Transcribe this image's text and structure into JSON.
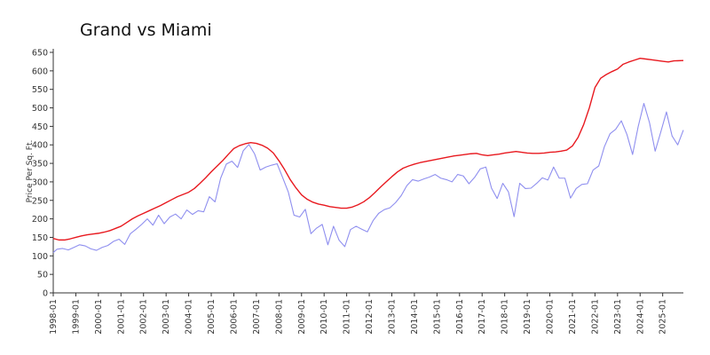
{
  "chart_data": {
    "type": "line",
    "title": "Grand vs Miami",
    "xlabel": "",
    "ylabel": "Price Per Sq. Ft.",
    "ylim": [
      0,
      650
    ],
    "yticks": [
      0,
      50,
      100,
      150,
      200,
      250,
      300,
      350,
      400,
      450,
      500,
      550,
      600,
      650
    ],
    "x_range": [
      "1998-01",
      "2025-12"
    ],
    "x_tick_labels": [
      "1998-01",
      "1999-01",
      "2000-01",
      "2001-01",
      "2002-01",
      "2003-01",
      "2004-01",
      "2005-01",
      "2006-01",
      "2007-01",
      "2008-01",
      "2009-01",
      "2010-01",
      "2011-01",
      "2012-01",
      "2013-01",
      "2014-01",
      "2015-01",
      "2016-01",
      "2017-01",
      "2018-01",
      "2019-01",
      "2020-01",
      "2021-01",
      "2022-01",
      "2023-01",
      "2024-01",
      "2025-01"
    ],
    "grid": false,
    "legend": "none",
    "series": [
      {
        "color": "#e8191f",
        "points": [
          [
            "1998-01",
            147
          ],
          [
            "1998-04",
            143
          ],
          [
            "1998-07",
            143
          ],
          [
            "1998-10",
            146
          ],
          [
            "1999-01",
            150
          ],
          [
            "1999-04",
            154
          ],
          [
            "1999-07",
            157
          ],
          [
            "1999-10",
            159
          ],
          [
            "2000-01",
            161
          ],
          [
            "2000-04",
            164
          ],
          [
            "2000-07",
            168
          ],
          [
            "2000-10",
            174
          ],
          [
            "2001-01",
            180
          ],
          [
            "2001-04",
            190
          ],
          [
            "2001-07",
            200
          ],
          [
            "2001-10",
            208
          ],
          [
            "2002-01",
            215
          ],
          [
            "2002-04",
            222
          ],
          [
            "2002-07",
            229
          ],
          [
            "2002-10",
            236
          ],
          [
            "2003-01",
            244
          ],
          [
            "2003-04",
            252
          ],
          [
            "2003-07",
            260
          ],
          [
            "2003-10",
            266
          ],
          [
            "2004-01",
            272
          ],
          [
            "2004-04",
            282
          ],
          [
            "2004-07",
            296
          ],
          [
            "2004-10",
            311
          ],
          [
            "2005-01",
            327
          ],
          [
            "2005-04",
            342
          ],
          [
            "2005-07",
            357
          ],
          [
            "2005-10",
            374
          ],
          [
            "2006-01",
            390
          ],
          [
            "2006-04",
            398
          ],
          [
            "2006-07",
            403
          ],
          [
            "2006-10",
            406
          ],
          [
            "2007-01",
            404
          ],
          [
            "2007-04",
            399
          ],
          [
            "2007-07",
            391
          ],
          [
            "2007-10",
            378
          ],
          [
            "2008-01",
            357
          ],
          [
            "2008-04",
            333
          ],
          [
            "2008-07",
            306
          ],
          [
            "2008-10",
            284
          ],
          [
            "2009-01",
            265
          ],
          [
            "2009-04",
            253
          ],
          [
            "2009-07",
            245
          ],
          [
            "2009-10",
            240
          ],
          [
            "2010-01",
            237
          ],
          [
            "2010-04",
            233
          ],
          [
            "2010-07",
            231
          ],
          [
            "2010-10",
            229
          ],
          [
            "2011-01",
            229
          ],
          [
            "2011-04",
            232
          ],
          [
            "2011-07",
            238
          ],
          [
            "2011-10",
            246
          ],
          [
            "2012-01",
            257
          ],
          [
            "2012-04",
            271
          ],
          [
            "2012-07",
            286
          ],
          [
            "2012-10",
            300
          ],
          [
            "2013-01",
            314
          ],
          [
            "2013-04",
            327
          ],
          [
            "2013-07",
            337
          ],
          [
            "2013-10",
            343
          ],
          [
            "2014-01",
            348
          ],
          [
            "2014-04",
            352
          ],
          [
            "2014-07",
            355
          ],
          [
            "2014-10",
            358
          ],
          [
            "2015-01",
            361
          ],
          [
            "2015-04",
            364
          ],
          [
            "2015-07",
            367
          ],
          [
            "2015-10",
            370
          ],
          [
            "2016-01",
            372
          ],
          [
            "2016-04",
            374
          ],
          [
            "2016-07",
            376
          ],
          [
            "2016-10",
            377
          ],
          [
            "2017-01",
            373
          ],
          [
            "2017-04",
            371
          ],
          [
            "2017-07",
            373
          ],
          [
            "2017-10",
            375
          ],
          [
            "2018-01",
            378
          ],
          [
            "2018-04",
            380
          ],
          [
            "2018-07",
            382
          ],
          [
            "2018-10",
            380
          ],
          [
            "2019-01",
            378
          ],
          [
            "2019-04",
            377
          ],
          [
            "2019-07",
            377
          ],
          [
            "2019-10",
            378
          ],
          [
            "2020-01",
            380
          ],
          [
            "2020-04",
            381
          ],
          [
            "2020-07",
            383
          ],
          [
            "2020-10",
            386
          ],
          [
            "2021-01",
            397
          ],
          [
            "2021-04",
            420
          ],
          [
            "2021-07",
            455
          ],
          [
            "2021-10",
            500
          ],
          [
            "2022-01",
            555
          ],
          [
            "2022-04",
            580
          ],
          [
            "2022-07",
            590
          ],
          [
            "2022-10",
            598
          ],
          [
            "2023-01",
            605
          ],
          [
            "2023-04",
            618
          ],
          [
            "2023-07",
            624
          ],
          [
            "2023-10",
            629
          ],
          [
            "2024-01",
            634
          ],
          [
            "2024-04",
            632
          ],
          [
            "2024-07",
            630
          ],
          [
            "2024-10",
            628
          ],
          [
            "2025-01",
            626
          ],
          [
            "2025-04",
            624
          ],
          [
            "2025-07",
            627
          ],
          [
            "2025-12",
            628
          ]
        ]
      },
      {
        "color": "#8f8fef",
        "points": [
          [
            "1998-01",
            109
          ],
          [
            "1998-03",
            118
          ],
          [
            "1998-06",
            120
          ],
          [
            "1998-09",
            116
          ],
          [
            "1998-12",
            123
          ],
          [
            "1999-03",
            130
          ],
          [
            "1999-06",
            127
          ],
          [
            "1999-09",
            119
          ],
          [
            "1999-12",
            115
          ],
          [
            "2000-03",
            123
          ],
          [
            "2000-06",
            128
          ],
          [
            "2000-09",
            139
          ],
          [
            "2000-12",
            145
          ],
          [
            "2001-03",
            131
          ],
          [
            "2001-06",
            160
          ],
          [
            "2001-09",
            172
          ],
          [
            "2001-12",
            185
          ],
          [
            "2002-03",
            200
          ],
          [
            "2002-06",
            183
          ],
          [
            "2002-09",
            210
          ],
          [
            "2002-12",
            187
          ],
          [
            "2003-03",
            205
          ],
          [
            "2003-06",
            213
          ],
          [
            "2003-09",
            200
          ],
          [
            "2003-12",
            224
          ],
          [
            "2004-03",
            212
          ],
          [
            "2004-06",
            222
          ],
          [
            "2004-09",
            219
          ],
          [
            "2004-12",
            260
          ],
          [
            "2005-03",
            246
          ],
          [
            "2005-06",
            310
          ],
          [
            "2005-09",
            348
          ],
          [
            "2005-12",
            356
          ],
          [
            "2006-03",
            339
          ],
          [
            "2006-06",
            384
          ],
          [
            "2006-09",
            401
          ],
          [
            "2006-12",
            376
          ],
          [
            "2007-03",
            332
          ],
          [
            "2007-06",
            340
          ],
          [
            "2007-09",
            345
          ],
          [
            "2007-12",
            349
          ],
          [
            "2008-03",
            311
          ],
          [
            "2008-06",
            272
          ],
          [
            "2008-09",
            210
          ],
          [
            "2008-12",
            205
          ],
          [
            "2009-03",
            226
          ],
          [
            "2009-06",
            160
          ],
          [
            "2009-09",
            175
          ],
          [
            "2009-12",
            185
          ],
          [
            "2010-03",
            130
          ],
          [
            "2010-06",
            180
          ],
          [
            "2010-09",
            142
          ],
          [
            "2010-12",
            125
          ],
          [
            "2011-03",
            171
          ],
          [
            "2011-06",
            180
          ],
          [
            "2011-09",
            172
          ],
          [
            "2011-12",
            165
          ],
          [
            "2012-03",
            195
          ],
          [
            "2012-06",
            215
          ],
          [
            "2012-09",
            225
          ],
          [
            "2012-12",
            230
          ],
          [
            "2013-03",
            244
          ],
          [
            "2013-06",
            263
          ],
          [
            "2013-09",
            290
          ],
          [
            "2013-12",
            306
          ],
          [
            "2014-03",
            302
          ],
          [
            "2014-06",
            308
          ],
          [
            "2014-09",
            313
          ],
          [
            "2014-12",
            320
          ],
          [
            "2015-03",
            310
          ],
          [
            "2015-06",
            306
          ],
          [
            "2015-09",
            300
          ],
          [
            "2015-12",
            320
          ],
          [
            "2016-03",
            316
          ],
          [
            "2016-06",
            295
          ],
          [
            "2016-09",
            312
          ],
          [
            "2016-12",
            335
          ],
          [
            "2017-03",
            340
          ],
          [
            "2017-06",
            283
          ],
          [
            "2017-09",
            255
          ],
          [
            "2017-12",
            296
          ],
          [
            "2018-03",
            273
          ],
          [
            "2018-06",
            206
          ],
          [
            "2018-09",
            296
          ],
          [
            "2018-12",
            282
          ],
          [
            "2019-03",
            283
          ],
          [
            "2019-06",
            296
          ],
          [
            "2019-09",
            311
          ],
          [
            "2019-12",
            305
          ],
          [
            "2020-03",
            340
          ],
          [
            "2020-06",
            310
          ],
          [
            "2020-09",
            310
          ],
          [
            "2020-12",
            256
          ],
          [
            "2021-03",
            282
          ],
          [
            "2021-06",
            293
          ],
          [
            "2021-09",
            295
          ],
          [
            "2021-12",
            332
          ],
          [
            "2022-03",
            343
          ],
          [
            "2022-06",
            395
          ],
          [
            "2022-09",
            430
          ],
          [
            "2022-12",
            442
          ],
          [
            "2023-03",
            465
          ],
          [
            "2023-06",
            428
          ],
          [
            "2023-09",
            374
          ],
          [
            "2023-12",
            450
          ],
          [
            "2024-03",
            512
          ],
          [
            "2024-06",
            460
          ],
          [
            "2024-09",
            383
          ],
          [
            "2024-12",
            435
          ],
          [
            "2025-03",
            489
          ],
          [
            "2025-06",
            424
          ],
          [
            "2025-09",
            400
          ],
          [
            "2025-12",
            440
          ]
        ]
      }
    ]
  }
}
